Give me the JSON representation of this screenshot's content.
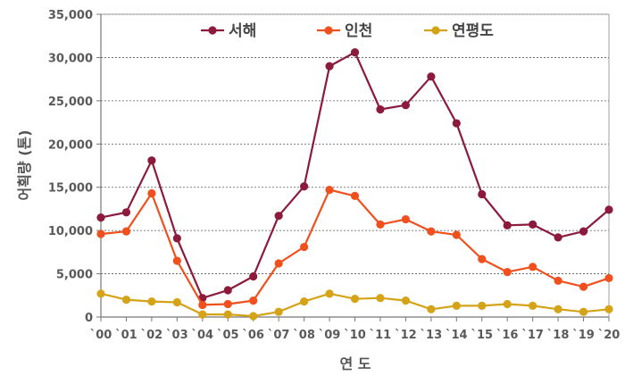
{
  "chart_data": {
    "type": "line",
    "categories": [
      "`00",
      "`01",
      "`02",
      "`03",
      "`04",
      "`05",
      "`06",
      "`07",
      "`08",
      "`09",
      "`10",
      "`11",
      "`12",
      "`13",
      "`14",
      "`15",
      "`16",
      "`17",
      "`18",
      "`19",
      "`20"
    ],
    "series": [
      {
        "name": "서해",
        "color": "#8b1a3c",
        "values": [
          11500,
          12100,
          18100,
          9100,
          2200,
          3100,
          4700,
          11700,
          15100,
          29000,
          30600,
          24000,
          24500,
          27800,
          22400,
          14200,
          10600,
          10700,
          9200,
          9900,
          12400
        ]
      },
      {
        "name": "인천",
        "color": "#f0501e",
        "values": [
          9600,
          9900,
          14300,
          6500,
          1400,
          1500,
          1900,
          6200,
          8100,
          14700,
          14000,
          10700,
          11300,
          9900,
          9500,
          6700,
          5200,
          5800,
          4200,
          3500,
          4500
        ]
      },
      {
        "name": "연평도",
        "color": "#d4a317",
        "values": [
          2700,
          2000,
          1800,
          1700,
          300,
          300,
          100,
          600,
          1800,
          2700,
          2100,
          2200,
          1900,
          900,
          1300,
          1300,
          1500,
          1300,
          900,
          600,
          900
        ]
      }
    ],
    "yticks": [
      "0",
      "5,000",
      "10,000",
      "15,000",
      "20,000",
      "25,000",
      "30,000",
      "35,000"
    ],
    "ylim": [
      0,
      35000
    ],
    "xlabel": "연 도",
    "ylabel": "어획량 (톤)",
    "grid": true,
    "legend_position": "top"
  }
}
